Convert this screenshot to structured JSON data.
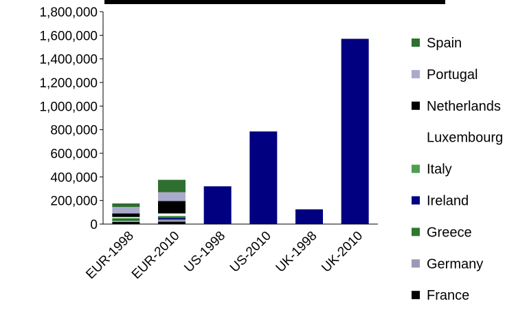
{
  "chart_data": {
    "type": "bar",
    "stacked": true,
    "categories": [
      "EUR-1998",
      "EUR-2010",
      "US-1998",
      "US-2010",
      "UK-1998",
      "UK-2010"
    ],
    "ylim": [
      0,
      1800000
    ],
    "yticks": [
      "0",
      "200,000",
      "400,000",
      "600,000",
      "800,000",
      "1,000,000",
      "1,200,000",
      "1,400,000",
      "1,600,000",
      "1,800,000"
    ],
    "grid": false,
    "legend_position": "right",
    "series": [
      {
        "name": "France",
        "color": "#000000",
        "values": [
          18000,
          20000,
          0,
          0,
          0,
          0
        ]
      },
      {
        "name": "Germany",
        "color": "#9a9ab8",
        "values": [
          10000,
          15000,
          0,
          0,
          0,
          0
        ]
      },
      {
        "name": "Greece",
        "color": "#2d7a2d",
        "values": [
          7000,
          8000,
          0,
          0,
          0,
          0
        ]
      },
      {
        "name": "Ireland",
        "color": "#000080",
        "values": [
          5000,
          12000,
          320000,
          785000,
          125000,
          1570000
        ]
      },
      {
        "name": "Italy",
        "color": "#4f9e4f",
        "values": [
          12000,
          15000,
          0,
          0,
          0,
          0
        ]
      },
      {
        "name": "Luxembourg",
        "color": "#ffffff",
        "values": [
          8000,
          20000,
          0,
          0,
          0,
          0
        ]
      },
      {
        "name": "Netherlands",
        "color": "#000000",
        "values": [
          30000,
          105000,
          0,
          0,
          0,
          0
        ]
      },
      {
        "name": "Portugal",
        "color": "#aaaacc",
        "values": [
          55000,
          75000,
          0,
          0,
          0,
          0
        ]
      },
      {
        "name": "Spain",
        "color": "#2f6f2f",
        "values": [
          30000,
          105000,
          0,
          0,
          0,
          0
        ]
      }
    ]
  }
}
